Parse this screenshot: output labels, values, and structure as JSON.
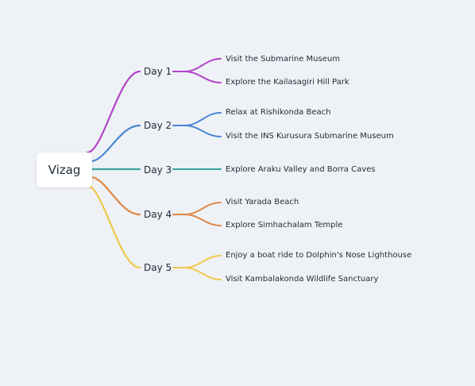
{
  "mindmap": {
    "root": "Vizag",
    "branches": [
      {
        "label": "Day 1",
        "color": "#b143c9",
        "children": [
          "Visit the Submarine Museum",
          "Explore the Kailasagiri Hill Park"
        ]
      },
      {
        "label": "Day 2",
        "color": "#4a86d4",
        "children": [
          "Relax at Rishikonda Beach",
          "Visit the INS Kurusura Submarine Museum"
        ]
      },
      {
        "label": "Day 3",
        "color": "#3aa6a0",
        "children": [
          "Explore Araku Valley and Borra Caves"
        ]
      },
      {
        "label": "Day 4",
        "color": "#df8747",
        "children": [
          "Visit Yarada Beach",
          "Explore Simhachalam Temple"
        ]
      },
      {
        "label": "Day 5",
        "color": "#f0c84b",
        "children": [
          "Enjoy a boat ride to Dolphin's Nose Lighthouse",
          "Visit Kambalakonda Wildlife Sanctuary"
        ]
      }
    ]
  }
}
